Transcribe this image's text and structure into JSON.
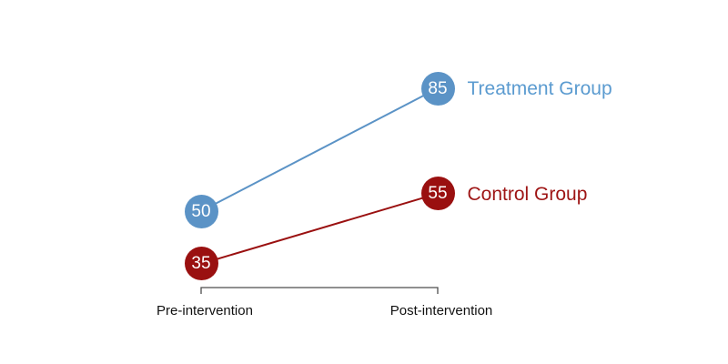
{
  "chart_data": {
    "type": "line",
    "subtype": "slopegraph",
    "categories": [
      "Pre-intervention",
      "Post-intervention"
    ],
    "series": [
      {
        "name": "Treatment Group",
        "values": [
          50,
          85
        ],
        "color": "#5b93c6",
        "label_color": "#5b9bd0"
      },
      {
        "name": "Control Group",
        "values": [
          35,
          55
        ],
        "color": "#9a1010",
        "label_color": "#9e1515"
      }
    ],
    "value_labels_shown": true,
    "ylim": [
      28,
      92
    ],
    "grid": false,
    "legend_position": "right-of-last-point",
    "axis": {
      "bracket_shown": true,
      "bracket_color": "#4d4d4d",
      "tick_label_color": "#111111"
    }
  },
  "background_color": "#ffffff"
}
